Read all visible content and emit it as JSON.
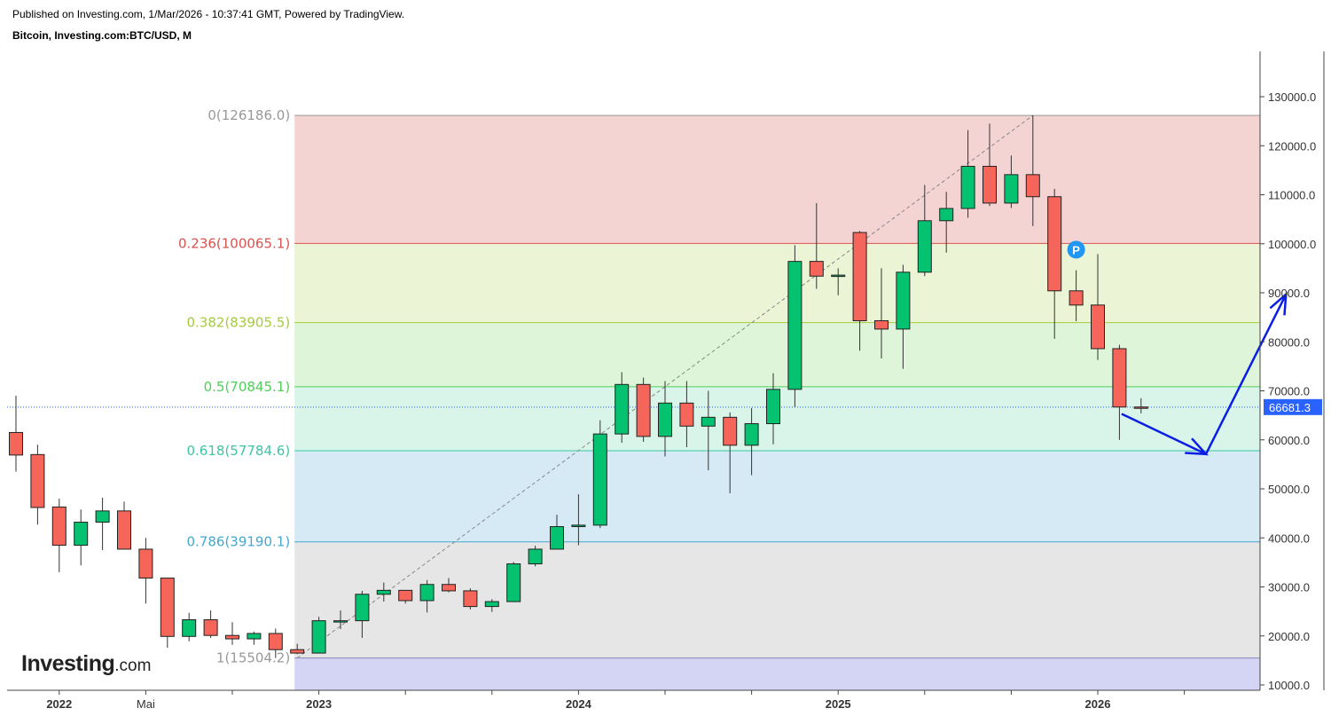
{
  "header": {
    "published": "Published on Investing.com, 1/Mar/2026 - 10:37:41 GMT, Powered by TradingView.",
    "title": "Bitcoin, Investing.com:BTC/USD, M"
  },
  "logo": {
    "main": "Investing",
    "suffix": ".com"
  },
  "colors": {
    "up": "#05c270",
    "down": "#f5655a",
    "wick": "#333333",
    "arrow": "#0a1ee6",
    "price_label_bg": "#2962ff",
    "marker": "#2196f3"
  },
  "chart_data": {
    "type": "candlestick",
    "interval": "monthly",
    "ylim": [
      8000,
      139500
    ],
    "y_ticks": [
      10000,
      20000,
      30000,
      40000,
      50000,
      60000,
      70000,
      80000,
      90000,
      100000,
      110000,
      120000,
      130000
    ],
    "y_tick_labels": [
      "10000.0",
      "20000.0",
      "30000.0",
      "40000.0",
      "50000.0",
      "60000.0",
      "70000.0",
      "80000.0",
      "90000.0",
      "100000.0",
      "110000.0",
      "120000.0",
      "130000.0"
    ],
    "x_labels": [
      {
        "label": "2022",
        "index": 2
      },
      {
        "label": "Mai",
        "index": 6
      },
      {
        "label": "2023",
        "index": 14
      },
      {
        "label": "2024",
        "index": 26
      },
      {
        "label": "2025",
        "index": 38
      },
      {
        "label": "2026",
        "index": 50
      }
    ],
    "minor_ticks": [
      2,
      6,
      10,
      14,
      18,
      22,
      26,
      30,
      34,
      38,
      42,
      46,
      50,
      54
    ],
    "current_price": 66681.3,
    "current_price_label": "66681.3",
    "fib_levels": [
      {
        "ratio": "0",
        "price": 126186.0,
        "label": "0(126186.0)",
        "line": "#999999",
        "fill": "#f4d3d3",
        "text": "#999999"
      },
      {
        "ratio": "0.236",
        "price": 100065.1,
        "label": "0.236(100065.1)",
        "line": "#d9534f",
        "fill": "#ebf5d5",
        "text": "#d9534f"
      },
      {
        "ratio": "0.382",
        "price": 83905.5,
        "label": "0.382(83905.5)",
        "line": "#a4cc3d",
        "fill": "#dff5da",
        "text": "#a4cc3d"
      },
      {
        "ratio": "0.5",
        "price": 70845.1,
        "label": "0.5(70845.1)",
        "line": "#4fcf58",
        "fill": "#d9f5ea",
        "text": "#4fcf58"
      },
      {
        "ratio": "0.618",
        "price": 57784.6,
        "label": "0.618(57784.6)",
        "line": "#3cc6a1",
        "fill": "#d5eaf5",
        "text": "#3cc6a1"
      },
      {
        "ratio": "0.786",
        "price": 39190.1,
        "label": "0.786(39190.1)",
        "line": "#45a8cf",
        "fill": "#e6e6e6",
        "text": "#45a8cf"
      },
      {
        "ratio": "1",
        "price": 15504.2,
        "label": "1(15504.2)",
        "line": "#8888bb",
        "fill": "#d4d4f4",
        "text": "#999999"
      }
    ],
    "fib_anchor": {
      "from_index": 13,
      "from_price": 15504.2,
      "to_index": 47,
      "to_price": 126186.0
    },
    "candles": [
      {
        "o": 61500,
        "h": 69000,
        "l": 53500,
        "c": 56900
      },
      {
        "o": 57000,
        "h": 59000,
        "l": 42700,
        "c": 46200
      },
      {
        "o": 46300,
        "h": 48000,
        "l": 33000,
        "c": 38500
      },
      {
        "o": 38500,
        "h": 45800,
        "l": 34400,
        "c": 43200
      },
      {
        "o": 43200,
        "h": 48200,
        "l": 37500,
        "c": 45500
      },
      {
        "o": 45500,
        "h": 47400,
        "l": 37700,
        "c": 37700
      },
      {
        "o": 37700,
        "h": 40000,
        "l": 26600,
        "c": 31800
      },
      {
        "o": 31800,
        "h": 31900,
        "l": 17600,
        "c": 19900
      },
      {
        "o": 19900,
        "h": 24700,
        "l": 18900,
        "c": 23300
      },
      {
        "o": 23300,
        "h": 25200,
        "l": 19600,
        "c": 20100
      },
      {
        "o": 20100,
        "h": 22800,
        "l": 18200,
        "c": 19400
      },
      {
        "o": 19400,
        "h": 20900,
        "l": 18200,
        "c": 20500
      },
      {
        "o": 20500,
        "h": 21500,
        "l": 15500,
        "c": 17200
      },
      {
        "o": 17200,
        "h": 18400,
        "l": 16300,
        "c": 16500
      },
      {
        "o": 16500,
        "h": 23900,
        "l": 16500,
        "c": 23100
      },
      {
        "o": 23100,
        "h": 25200,
        "l": 21400,
        "c": 23100
      },
      {
        "o": 23100,
        "h": 29200,
        "l": 19600,
        "c": 28500
      },
      {
        "o": 28500,
        "h": 30900,
        "l": 27000,
        "c": 29300
      },
      {
        "o": 29300,
        "h": 28300,
        "l": 26600,
        "c": 27200
      },
      {
        "o": 27200,
        "h": 31400,
        "l": 24800,
        "c": 30500
      },
      {
        "o": 30500,
        "h": 31800,
        "l": 28900,
        "c": 29200
      },
      {
        "o": 29200,
        "h": 29700,
        "l": 25400,
        "c": 26000
      },
      {
        "o": 26000,
        "h": 27500,
        "l": 24900,
        "c": 27000
      },
      {
        "o": 27000,
        "h": 35100,
        "l": 26900,
        "c": 34700
      },
      {
        "o": 34700,
        "h": 38400,
        "l": 34200,
        "c": 37700
      },
      {
        "o": 37700,
        "h": 44700,
        "l": 37700,
        "c": 42300
      },
      {
        "o": 42300,
        "h": 48900,
        "l": 38500,
        "c": 42600
      },
      {
        "o": 42600,
        "h": 64000,
        "l": 42000,
        "c": 61200
      },
      {
        "o": 61200,
        "h": 73800,
        "l": 59400,
        "c": 71300
      },
      {
        "o": 71300,
        "h": 72700,
        "l": 59600,
        "c": 60700
      },
      {
        "o": 60700,
        "h": 72000,
        "l": 56600,
        "c": 67500
      },
      {
        "o": 67500,
        "h": 72000,
        "l": 58500,
        "c": 62800
      },
      {
        "o": 62800,
        "h": 70000,
        "l": 53800,
        "c": 64600
      },
      {
        "o": 64600,
        "h": 65600,
        "l": 49100,
        "c": 58900
      },
      {
        "o": 58900,
        "h": 66500,
        "l": 52800,
        "c": 63300
      },
      {
        "o": 63300,
        "h": 73600,
        "l": 59100,
        "c": 70300
      },
      {
        "o": 70300,
        "h": 99700,
        "l": 66700,
        "c": 96400
      },
      {
        "o": 96400,
        "h": 108300,
        "l": 90800,
        "c": 93400
      },
      {
        "o": 93400,
        "h": 95000,
        "l": 89500,
        "c": 93600
      },
      {
        "o": 102300,
        "h": 102600,
        "l": 78200,
        "c": 84300
      },
      {
        "o": 84300,
        "h": 95000,
        "l": 76600,
        "c": 82600
      },
      {
        "o": 82600,
        "h": 95700,
        "l": 74500,
        "c": 94200
      },
      {
        "o": 94200,
        "h": 112000,
        "l": 93400,
        "c": 104700
      },
      {
        "o": 104700,
        "h": 110600,
        "l": 98200,
        "c": 107200
      },
      {
        "o": 107200,
        "h": 123200,
        "l": 105300,
        "c": 115800
      },
      {
        "o": 115800,
        "h": 124500,
        "l": 107700,
        "c": 108300
      },
      {
        "o": 108300,
        "h": 118000,
        "l": 107300,
        "c": 114100
      },
      {
        "o": 114100,
        "h": 126200,
        "l": 103600,
        "c": 109600
      },
      {
        "o": 109600,
        "h": 111200,
        "l": 80600,
        "c": 90400
      },
      {
        "o": 90400,
        "h": 94600,
        "l": 84200,
        "c": 87500
      },
      {
        "o": 87500,
        "h": 97900,
        "l": 76300,
        "c": 78600
      },
      {
        "o": 78600,
        "h": 79400,
        "l": 60000,
        "c": 66700
      },
      {
        "o": 66700,
        "h": 68500,
        "l": 65400,
        "c": 66681.3
      }
    ],
    "projection": [
      {
        "index": 51.1,
        "price": 65300
      },
      {
        "index": 55.0,
        "price": 57100
      },
      {
        "index": 58.7,
        "price": 89700
      }
    ],
    "marker": {
      "index": 49.0,
      "price": 98800,
      "label": "P"
    }
  }
}
